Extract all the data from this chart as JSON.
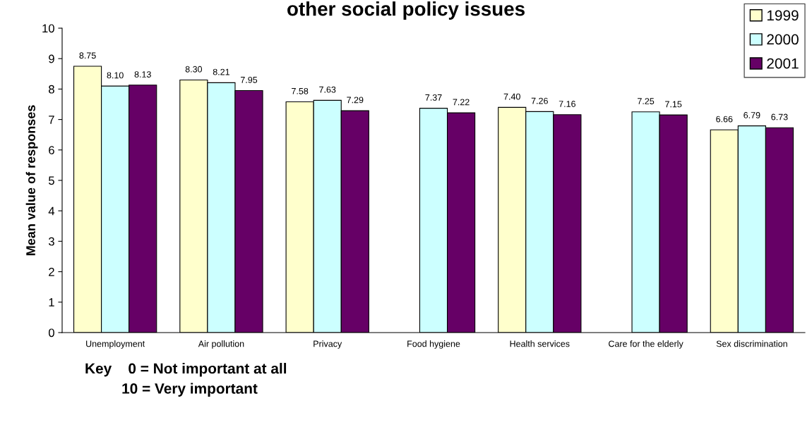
{
  "chart_data": {
    "type": "bar",
    "title": "other social policy issues",
    "ylabel": "Mean value of responses",
    "categories": [
      "Unemployment",
      "Air pollution",
      "Privacy",
      "Food hygiene",
      "Health services",
      "Care for the elderly",
      "Sex discrimination"
    ],
    "series": [
      {
        "name": "1999",
        "color": "#ffffcc",
        "values": [
          8.75,
          8.3,
          7.58,
          null,
          7.4,
          null,
          6.66
        ],
        "value_labels": [
          "8.75",
          "8.30",
          "7.58",
          null,
          "7.40",
          null,
          "6.66"
        ]
      },
      {
        "name": "2000",
        "color": "#ccffff",
        "values": [
          8.1,
          8.21,
          7.63,
          7.37,
          7.26,
          7.25,
          6.79
        ],
        "value_labels": [
          "8.10",
          "8.21",
          "7.63",
          "7.37",
          "7.26",
          "7.25",
          "6.79"
        ]
      },
      {
        "name": "2001",
        "color": "#660066",
        "values": [
          8.13,
          7.95,
          7.29,
          7.22,
          7.16,
          7.15,
          6.73
        ],
        "value_labels": [
          "8.13",
          "7.95",
          "7.29",
          "7.22",
          "7.16",
          "7.15",
          "6.73"
        ]
      }
    ],
    "ylim": [
      0,
      10
    ],
    "yticks": [
      0,
      1,
      2,
      3,
      4,
      5,
      6,
      7,
      8,
      9,
      10
    ],
    "grid": false,
    "legend": "top right",
    "annotations": [
      "Key    0 = Not important at all\n         10 = Very important"
    ]
  }
}
